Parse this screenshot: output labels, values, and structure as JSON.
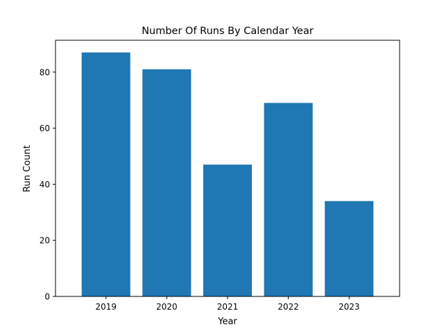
{
  "chart_data": {
    "type": "bar",
    "title": "Number Of Runs By Calendar Year",
    "xlabel": "Year",
    "ylabel": "Run Count",
    "categories": [
      "2019",
      "2020",
      "2021",
      "2022",
      "2023"
    ],
    "values": [
      87,
      81,
      47,
      69,
      34
    ],
    "ylim": [
      0,
      91.35
    ],
    "yticks": [
      0,
      20,
      40,
      60,
      80
    ],
    "grid": false,
    "bar_color": "#1f77b4"
  }
}
